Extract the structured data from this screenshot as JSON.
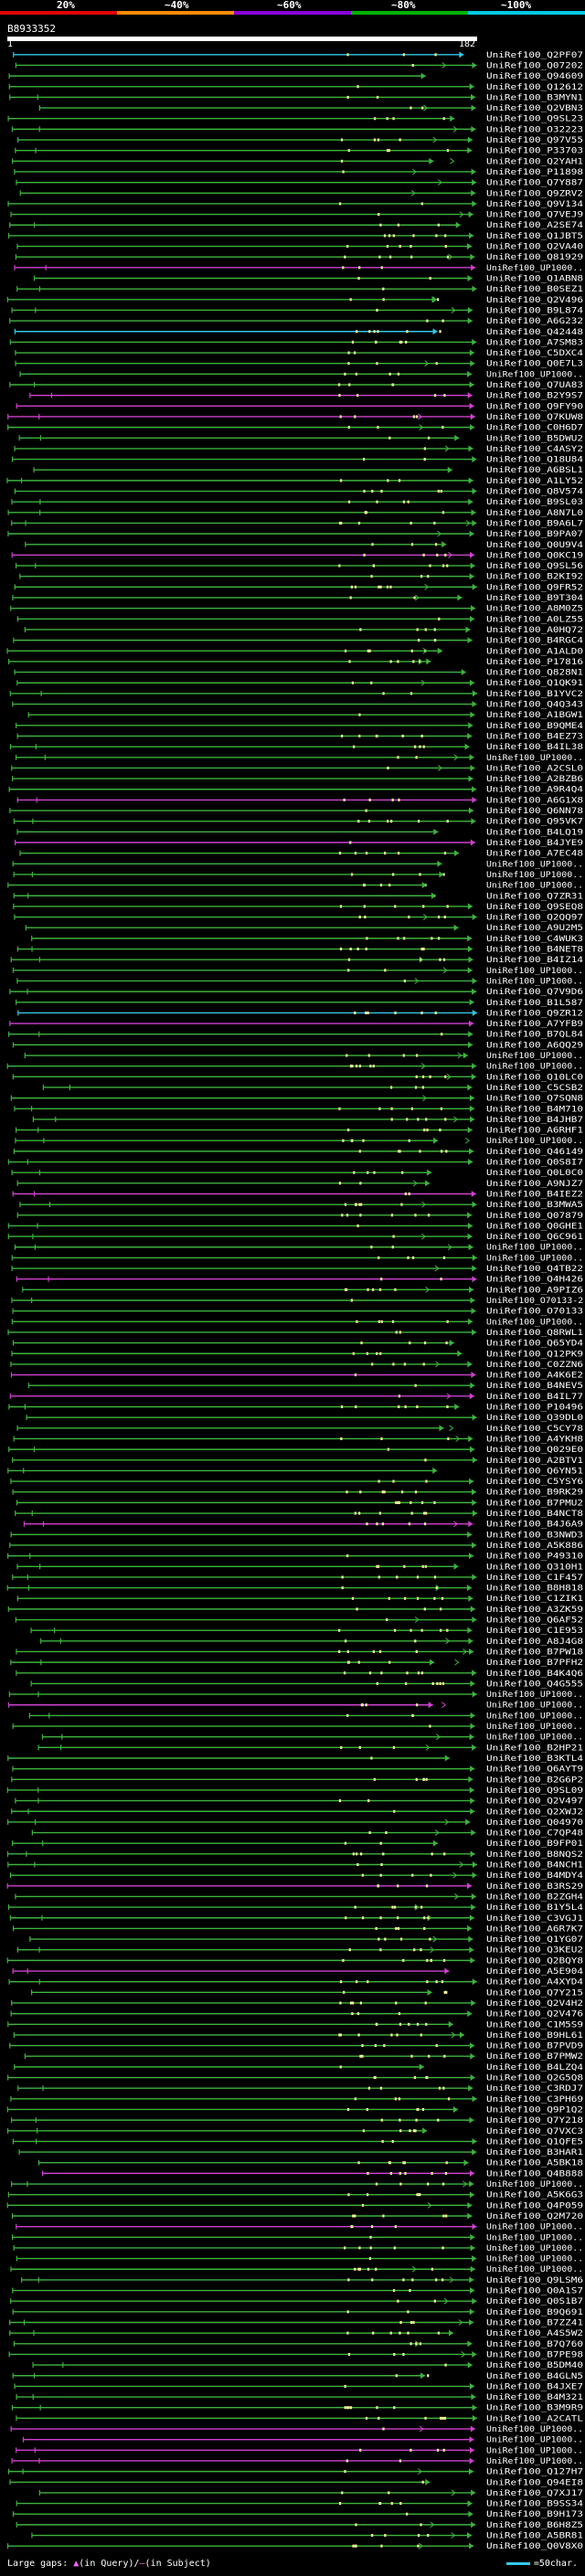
{
  "scale": {
    "labels": [
      "20%",
      "~40%",
      "~60%",
      "~80%",
      "~100%"
    ],
    "colors": [
      "#e00000",
      "#ff8c00",
      "#8b00d8",
      "#00b400",
      "#00c8e8"
    ]
  },
  "query": {
    "id": "B8933352",
    "start_label": "1",
    "end_label": "182"
  },
  "legend": {
    "gap_text": "Large gaps: ",
    "in_query_glyph": "▲",
    "in_query_text": "(in Query)/",
    "in_subject_glyph": "–",
    "in_subject_text": "(in Subject)",
    "scale_text": "=50char."
  },
  "chart_data": {
    "type": "alignment-overview",
    "query_length": 182,
    "hits": [
      {
        "id": "UniRef100_Q2PF07",
        "identity": "100%"
      },
      {
        "id": "UniRef100_Q07202",
        "identity": "80%"
      },
      {
        "id": "UniRef100_Q94609",
        "identity": "80%"
      },
      {
        "id": "UniRef100_Q12612",
        "identity": "80%"
      },
      {
        "id": "UniRef100_B3MYN1",
        "identity": "80%"
      },
      {
        "id": "UniRef100_Q2VBN3",
        "identity": "80%"
      },
      {
        "id": "UniRef100_Q9SL23",
        "identity": "80%"
      },
      {
        "id": "UniRef100_O32223",
        "identity": "80%"
      },
      {
        "id": "UniRef100_Q97V55",
        "identity": "80%"
      },
      {
        "id": "UniRef100_P33703",
        "identity": "80%"
      },
      {
        "id": "UniRef100_Q2YAH1",
        "identity": "80%"
      },
      {
        "id": "UniRef100_P11898",
        "identity": "80%"
      },
      {
        "id": "UniRef100_Q7Y887",
        "identity": "80%"
      },
      {
        "id": "UniRef100_Q9ZRV2",
        "identity": "80%"
      },
      {
        "id": "UniRef100_Q9V134",
        "identity": "80%"
      },
      {
        "id": "UniRef100_Q7VEJ9",
        "identity": "80%"
      },
      {
        "id": "UniRef100_A2SE74",
        "identity": "80%"
      },
      {
        "id": "UniRef100_Q1JBT5",
        "identity": "80%"
      },
      {
        "id": "UniRef100_Q2VA40",
        "identity": "80%"
      },
      {
        "id": "UniRef100_Q81929",
        "identity": "80%"
      },
      {
        "id": "UniRef100_UP1000..",
        "identity": "60%"
      },
      {
        "id": "UniRef100_Q1ABN8",
        "identity": "80%"
      },
      {
        "id": "UniRef100_B0SEZ1",
        "identity": "80%"
      },
      {
        "id": "UniRef100_Q2V496",
        "identity": "80%"
      },
      {
        "id": "UniRef100_B9L874",
        "identity": "80%"
      },
      {
        "id": "UniRef100_A6G232",
        "identity": "80%"
      },
      {
        "id": "UniRef100_Q42448",
        "identity": "100%"
      },
      {
        "id": "UniRef100_A7SM83",
        "identity": "80%"
      },
      {
        "id": "UniRef100_C5DXC4",
        "identity": "80%"
      },
      {
        "id": "UniRef100_Q0E7L3",
        "identity": "80%"
      },
      {
        "id": "UniRef100_UP1000..",
        "identity": "80%"
      },
      {
        "id": "UniRef100_Q7UA83",
        "identity": "80%"
      },
      {
        "id": "UniRef100_B2Y9S7",
        "identity": "60%"
      },
      {
        "id": "UniRef100_Q9FY90",
        "identity": "60%"
      },
      {
        "id": "UniRef100_Q7KUW8",
        "identity": "60%"
      },
      {
        "id": "UniRef100_C0H6D7",
        "identity": "80%"
      },
      {
        "id": "UniRef100_B5DWU2",
        "identity": "80%"
      },
      {
        "id": "UniRef100_C4ASY2",
        "identity": "80%"
      },
      {
        "id": "UniRef100_Q18U84",
        "identity": "80%"
      },
      {
        "id": "UniRef100_A6BSL1",
        "identity": "80%"
      },
      {
        "id": "UniRef100_A1LY52",
        "identity": "80%"
      },
      {
        "id": "UniRef100_Q8V574",
        "identity": "80%"
      },
      {
        "id": "UniRef100_B9SL03",
        "identity": "80%"
      },
      {
        "id": "UniRef100_A8N7L0",
        "identity": "80%"
      },
      {
        "id": "UniRef100_B9A6L7",
        "identity": "80%"
      },
      {
        "id": "UniRef100_B9PA07",
        "identity": "80%"
      },
      {
        "id": "UniRef100_Q0U9V4",
        "identity": "80%"
      },
      {
        "id": "UniRef100_Q0KC19",
        "identity": "60%"
      },
      {
        "id": "UniRef100_Q9SL56",
        "identity": "80%"
      },
      {
        "id": "UniRef100_B2KI92",
        "identity": "80%"
      },
      {
        "id": "UniRef100_Q9FR52",
        "identity": "80%"
      },
      {
        "id": "UniRef100_B9T304",
        "identity": "80%"
      },
      {
        "id": "UniRef100_A8M0Z5",
        "identity": "80%"
      },
      {
        "id": "UniRef100_A0LZ55",
        "identity": "80%"
      },
      {
        "id": "UniRef100_A0HQ72",
        "identity": "80%"
      },
      {
        "id": "UniRef100_B4RGC4",
        "identity": "80%"
      },
      {
        "id": "UniRef100_A1ALD0",
        "identity": "80%"
      },
      {
        "id": "UniRef100_P17816",
        "identity": "80%"
      },
      {
        "id": "UniRef100_Q828N1",
        "identity": "80%"
      },
      {
        "id": "UniRef100_Q1QK91",
        "identity": "80%"
      },
      {
        "id": "UniRef100_B1YVC2",
        "identity": "80%"
      },
      {
        "id": "UniRef100_Q4Q343",
        "identity": "80%"
      },
      {
        "id": "UniRef100_A1BGW1",
        "identity": "80%"
      },
      {
        "id": "UniRef100_B9QME4",
        "identity": "80%"
      },
      {
        "id": "UniRef100_B4EZ73",
        "identity": "80%"
      },
      {
        "id": "UniRef100_B4IL38",
        "identity": "80%"
      },
      {
        "id": "UniRef100_UP1000..",
        "identity": "80%"
      },
      {
        "id": "UniRef100_A2CSL0",
        "identity": "80%"
      },
      {
        "id": "UniRef100_A2BZB6",
        "identity": "80%"
      },
      {
        "id": "UniRef100_A9R4Q4",
        "identity": "80%"
      },
      {
        "id": "UniRef100_A6G1X8",
        "identity": "60%"
      },
      {
        "id": "UniRef100_Q6NN78",
        "identity": "80%"
      },
      {
        "id": "UniRef100_Q95VK7",
        "identity": "80%"
      },
      {
        "id": "UniRef100_B4LQ19",
        "identity": "80%"
      },
      {
        "id": "UniRef100_B4JYE9",
        "identity": "60%"
      },
      {
        "id": "UniRef100_A7EC48",
        "identity": "80%"
      },
      {
        "id": "UniRef100_UP1000..",
        "identity": "80%"
      },
      {
        "id": "UniRef100_UP1000..",
        "identity": "80%"
      },
      {
        "id": "UniRef100_UP1000..",
        "identity": "80%"
      },
      {
        "id": "UniRef100_Q7ZR31",
        "identity": "80%"
      },
      {
        "id": "UniRef100_Q9SEQ8",
        "identity": "80%"
      },
      {
        "id": "UniRef100_Q2QQ97",
        "identity": "80%"
      },
      {
        "id": "UniRef100_A9U2M5",
        "identity": "80%"
      },
      {
        "id": "UniRef100_C4WUK3",
        "identity": "80%"
      },
      {
        "id": "UniRef100_B4NET8",
        "identity": "80%"
      },
      {
        "id": "UniRef100_B4IZ14",
        "identity": "80%"
      },
      {
        "id": "UniRef100_UP1000..",
        "identity": "80%"
      },
      {
        "id": "UniRef100_UP1000..",
        "identity": "80%"
      },
      {
        "id": "UniRef100_Q7V9D6",
        "identity": "80%"
      },
      {
        "id": "UniRef100_B1L587",
        "identity": "80%"
      },
      {
        "id": "UniRef100_Q9ZR12",
        "identity": "100%"
      },
      {
        "id": "UniRef100_A7YFB9",
        "identity": "60%"
      },
      {
        "id": "UniRef100_B7QL84",
        "identity": "80%"
      },
      {
        "id": "UniRef100_A6QQ29",
        "identity": "80%"
      },
      {
        "id": "UniRef100_UP1000..",
        "identity": "80%"
      },
      {
        "id": "UniRef100_UP1000..",
        "identity": "80%"
      },
      {
        "id": "UniRef100_Q10LC0",
        "identity": "80%"
      },
      {
        "id": "UniRef100_C5CSB2",
        "identity": "80%"
      },
      {
        "id": "UniRef100_Q7SQN8",
        "identity": "80%"
      },
      {
        "id": "UniRef100_B4M710",
        "identity": "80%"
      },
      {
        "id": "UniRef100_B4JHB7",
        "identity": "80%"
      },
      {
        "id": "UniRef100_A6RHF1",
        "identity": "80%"
      },
      {
        "id": "UniRef100_UP1000..",
        "identity": "80%"
      },
      {
        "id": "UniRef100_Q46149",
        "identity": "80%"
      },
      {
        "id": "UniRef100_Q0S8I7",
        "identity": "80%"
      },
      {
        "id": "UniRef100_Q0L0C0",
        "identity": "80%"
      },
      {
        "id": "UniRef100_A9NJZ7",
        "identity": "80%"
      },
      {
        "id": "UniRef100_B4IEZ2",
        "identity": "60%"
      },
      {
        "id": "UniRef100_B3MWA5",
        "identity": "80%"
      },
      {
        "id": "UniRef100_Q07879",
        "identity": "80%"
      },
      {
        "id": "UniRef100_Q0GHE1",
        "identity": "80%"
      },
      {
        "id": "UniRef100_Q6C961",
        "identity": "80%"
      },
      {
        "id": "UniRef100_UP1000..",
        "identity": "80%"
      },
      {
        "id": "UniRef100_UP1000..",
        "identity": "80%"
      },
      {
        "id": "UniRef100_Q4TB22",
        "identity": "80%"
      },
      {
        "id": "UniRef100_Q4H426",
        "identity": "60%"
      },
      {
        "id": "UniRef100_A9PIZ6",
        "identity": "80%"
      },
      {
        "id": "UniRef100_O70133-2",
        "identity": "80%"
      },
      {
        "id": "UniRef100_O70133",
        "identity": "80%"
      },
      {
        "id": "UniRef100_UP1000..",
        "identity": "80%"
      },
      {
        "id": "UniRef100_Q8RWL1",
        "identity": "80%"
      },
      {
        "id": "UniRef100_Q65YD4",
        "identity": "80%"
      },
      {
        "id": "UniRef100_Q12PK9",
        "identity": "80%"
      },
      {
        "id": "UniRef100_C0ZZN6",
        "identity": "80%"
      },
      {
        "id": "UniRef100_A4K6E2",
        "identity": "60%"
      },
      {
        "id": "UniRef100_B4NEV5",
        "identity": "80%"
      },
      {
        "id": "UniRef100_B4IL77",
        "identity": "60%"
      },
      {
        "id": "UniRef100_P10496",
        "identity": "80%"
      },
      {
        "id": "UniRef100_Q39DL0",
        "identity": "80%"
      },
      {
        "id": "UniRef100_C5CY78",
        "identity": "80%"
      },
      {
        "id": "UniRef100_A4YKH8",
        "identity": "80%"
      },
      {
        "id": "UniRef100_Q029E0",
        "identity": "80%"
      },
      {
        "id": "UniRef100_A2BTV1",
        "identity": "80%"
      },
      {
        "id": "UniRef100_Q6YN51",
        "identity": "80%"
      },
      {
        "id": "UniRef100_C5YSY6",
        "identity": "80%"
      },
      {
        "id": "UniRef100_B9RK29",
        "identity": "80%"
      },
      {
        "id": "UniRef100_B7PMU2",
        "identity": "80%"
      },
      {
        "id": "UniRef100_B4NCT8",
        "identity": "80%"
      },
      {
        "id": "UniRef100_B4J6A9",
        "identity": "60%"
      },
      {
        "id": "UniRef100_B3NWD3",
        "identity": "80%"
      },
      {
        "id": "UniRef100_A5K886",
        "identity": "80%"
      },
      {
        "id": "UniRef100_P49310",
        "identity": "80%"
      },
      {
        "id": "UniRef100_Q310H1",
        "identity": "80%"
      },
      {
        "id": "UniRef100_C1F457",
        "identity": "80%"
      },
      {
        "id": "UniRef100_B8H818",
        "identity": "80%"
      },
      {
        "id": "UniRef100_C1ZIK1",
        "identity": "80%"
      },
      {
        "id": "UniRef100_A3ZK59",
        "identity": "80%"
      },
      {
        "id": "UniRef100_Q6AF52",
        "identity": "80%"
      },
      {
        "id": "UniRef100_C1E953",
        "identity": "80%"
      },
      {
        "id": "UniRef100_A8J4G8",
        "identity": "80%"
      },
      {
        "id": "UniRef100_B7PW18",
        "identity": "80%"
      },
      {
        "id": "UniRef100_B7PFH2",
        "identity": "80%"
      },
      {
        "id": "UniRef100_B4K4Q6",
        "identity": "80%"
      },
      {
        "id": "UniRef100_Q4G555",
        "identity": "80%"
      },
      {
        "id": "UniRef100_UP1000..",
        "identity": "80%"
      },
      {
        "id": "UniRef100_UP1000..",
        "identity": "60%"
      },
      {
        "id": "UniRef100_UP1000..",
        "identity": "80%"
      },
      {
        "id": "UniRef100_UP1000..",
        "identity": "80%"
      },
      {
        "id": "UniRef100_UP1000..",
        "identity": "80%"
      },
      {
        "id": "UniRef100_B2HP21",
        "identity": "80%"
      },
      {
        "id": "UniRef100_B3KTL4",
        "identity": "80%"
      },
      {
        "id": "UniRef100_Q6AYT9",
        "identity": "80%"
      },
      {
        "id": "UniRef100_B2G6P2",
        "identity": "80%"
      },
      {
        "id": "UniRef100_Q9SL09",
        "identity": "80%"
      },
      {
        "id": "UniRef100_Q2V497",
        "identity": "80%"
      },
      {
        "id": "UniRef100_Q2XWJ2",
        "identity": "80%"
      },
      {
        "id": "UniRef100_Q04970",
        "identity": "80%"
      },
      {
        "id": "UniRef100_C7QP48",
        "identity": "80%"
      },
      {
        "id": "UniRef100_B9FP01",
        "identity": "80%"
      },
      {
        "id": "UniRef100_B8NQS2",
        "identity": "80%"
      },
      {
        "id": "UniRef100_B4NCH1",
        "identity": "80%"
      },
      {
        "id": "UniRef100_B4MDY4",
        "identity": "80%"
      },
      {
        "id": "UniRef100_B3RS29",
        "identity": "60%"
      },
      {
        "id": "UniRef100_B2ZGH4",
        "identity": "80%"
      },
      {
        "id": "UniRef100_B1Y5L4",
        "identity": "80%"
      },
      {
        "id": "UniRef100_C3VGJ1",
        "identity": "80%"
      },
      {
        "id": "UniRef100_A6R7K7",
        "identity": "80%"
      },
      {
        "id": "UniRef100_Q1YG07",
        "identity": "80%"
      },
      {
        "id": "UniRef100_Q3KEU2",
        "identity": "80%"
      },
      {
        "id": "UniRef100_Q2BQY8",
        "identity": "80%"
      },
      {
        "id": "UniRef100_A5E904",
        "identity": "60%"
      },
      {
        "id": "UniRef100_A4XYD4",
        "identity": "80%"
      },
      {
        "id": "UniRef100_Q7Y215",
        "identity": "80%"
      },
      {
        "id": "UniRef100_Q2V4H2",
        "identity": "80%"
      },
      {
        "id": "UniRef100_Q2V476",
        "identity": "80%"
      },
      {
        "id": "UniRef100_C1M5S9",
        "identity": "80%"
      },
      {
        "id": "UniRef100_B9HL61",
        "identity": "80%"
      },
      {
        "id": "UniRef100_B7PVD9",
        "identity": "80%"
      },
      {
        "id": "UniRef100_B7PMW2",
        "identity": "80%"
      },
      {
        "id": "UniRef100_B4LZQ4",
        "identity": "80%"
      },
      {
        "id": "UniRef100_Q2G5Q8",
        "identity": "80%"
      },
      {
        "id": "UniRef100_C3RDJ7",
        "identity": "80%"
      },
      {
        "id": "UniRef100_C3PH69",
        "identity": "80%"
      },
      {
        "id": "UniRef100_Q9P1Q2",
        "identity": "80%"
      },
      {
        "id": "UniRef100_Q7Y218",
        "identity": "80%"
      },
      {
        "id": "UniRef100_Q7VXC3",
        "identity": "80%"
      },
      {
        "id": "UniRef100_Q1QFE5",
        "identity": "80%"
      },
      {
        "id": "UniRef100_B3HAR1",
        "identity": "80%"
      },
      {
        "id": "UniRef100_A5BK18",
        "identity": "80%"
      },
      {
        "id": "UniRef100_Q4B888",
        "identity": "60%"
      },
      {
        "id": "UniRef100_UP1000..",
        "identity": "80%"
      },
      {
        "id": "UniRef100_A5K6G3",
        "identity": "80%"
      },
      {
        "id": "UniRef100_Q4P059",
        "identity": "80%"
      },
      {
        "id": "UniRef100_Q2M720",
        "identity": "80%"
      },
      {
        "id": "UniRef100_UP1000..",
        "identity": "60%"
      },
      {
        "id": "UniRef100_UP1000..",
        "identity": "80%"
      },
      {
        "id": "UniRef100_UP1000..",
        "identity": "80%"
      },
      {
        "id": "UniRef100_UP1000..",
        "identity": "80%"
      },
      {
        "id": "UniRef100_UP1000..",
        "identity": "80%"
      },
      {
        "id": "UniRef100_Q9LSM6",
        "identity": "80%"
      },
      {
        "id": "UniRef100_Q0A1S7",
        "identity": "80%"
      },
      {
        "id": "UniRef100_Q0S1B7",
        "identity": "80%"
      },
      {
        "id": "UniRef100_B9Q691",
        "identity": "80%"
      },
      {
        "id": "UniRef100_B7ZZ41",
        "identity": "80%"
      },
      {
        "id": "UniRef100_A4S5W2",
        "identity": "80%"
      },
      {
        "id": "UniRef100_B7Q760",
        "identity": "80%"
      },
      {
        "id": "UniRef100_B7PE98",
        "identity": "80%"
      },
      {
        "id": "UniRef100_B5DM40",
        "identity": "80%"
      },
      {
        "id": "UniRef100_B4GLN5",
        "identity": "80%"
      },
      {
        "id": "UniRef100_B4JXE7",
        "identity": "80%"
      },
      {
        "id": "UniRef100_B4M321",
        "identity": "80%"
      },
      {
        "id": "UniRef100_B3M9R9",
        "identity": "80%"
      },
      {
        "id": "UniRef100_A2CATL",
        "identity": "80%"
      },
      {
        "id": "UniRef100_UP1000..",
        "identity": "60%"
      },
      {
        "id": "UniRef100_UP1000..",
        "identity": "60%"
      },
      {
        "id": "UniRef100_UP1000..",
        "identity": "60%"
      },
      {
        "id": "UniRef100_UP1000..",
        "identity": "60%"
      },
      {
        "id": "UniRef100_Q127H7",
        "identity": "80%"
      },
      {
        "id": "UniRef100_Q94EI8",
        "identity": "80%"
      },
      {
        "id": "UniRef100_Q7XJ17",
        "identity": "80%"
      },
      {
        "id": "UniRef100_B9SS34",
        "identity": "80%"
      },
      {
        "id": "UniRef100_B9H173",
        "identity": "80%"
      },
      {
        "id": "UniRef100_B6H8Z5",
        "identity": "80%"
      },
      {
        "id": "UniRef100_A5BR81",
        "identity": "80%"
      },
      {
        "id": "UniRef100_Q0V8X0",
        "identity": "80%"
      }
    ]
  }
}
